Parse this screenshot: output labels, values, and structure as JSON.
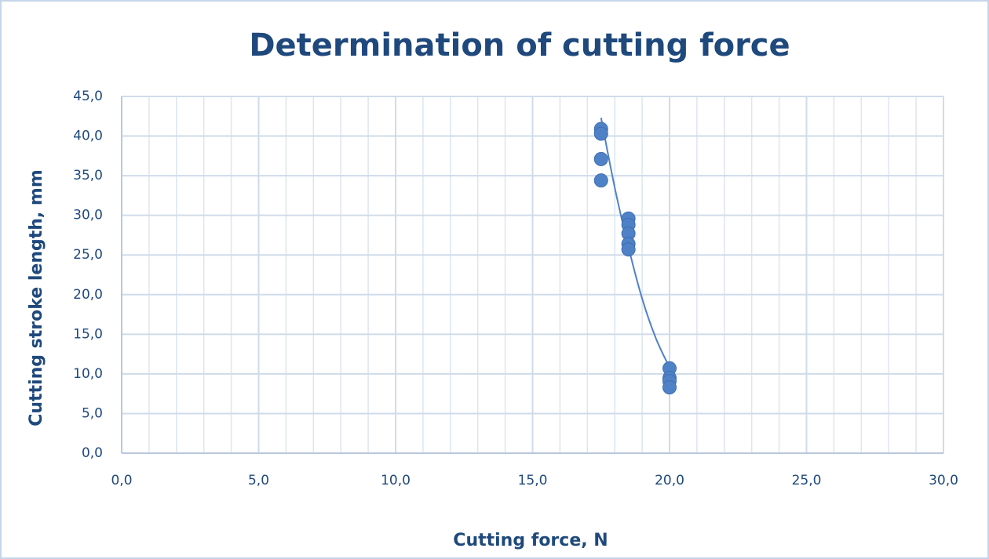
{
  "chart_data": {
    "type": "scatter",
    "title": "Determination of cutting force",
    "x_label": "Cutting force, N",
    "y_label": "Cutting stroke length, mm",
    "series": [
      {
        "color": "#4f81c7",
        "x": [
          17.5,
          17.5,
          17.5,
          17.5,
          18.5,
          18.5,
          18.5,
          18.5,
          18.5,
          20,
          20,
          20,
          20
        ],
        "values": [
          40.9,
          40.3,
          37.1,
          34.4,
          29.6,
          28.8,
          27.7,
          26.4,
          25.7,
          10.7,
          9.5,
          9.1,
          8.3
        ]
      }
    ],
    "trendline": {
      "color": "#4f81c7",
      "x": [
        17.5,
        18,
        18.5,
        19,
        19.5,
        20
      ],
      "values": [
        42.3,
        33.5,
        26,
        19.5,
        14.5,
        10.8
      ]
    },
    "xlim": [
      0,
      30
    ],
    "ylim": [
      0,
      45
    ],
    "xticks": [
      {
        "value": 0,
        "label": "0,0"
      },
      {
        "value": 5,
        "label": "5,0"
      },
      {
        "value": 10,
        "label": "10,0"
      },
      {
        "value": 15,
        "label": "15,0"
      },
      {
        "value": 20,
        "label": "20,0"
      },
      {
        "value": 25,
        "label": "25,0"
      },
      {
        "value": 30,
        "label": "30,0"
      }
    ],
    "yticks": [
      {
        "value": 0,
        "label": "0,0"
      },
      {
        "value": 5,
        "label": "5,0"
      },
      {
        "value": 10,
        "label": "10,0"
      },
      {
        "value": 15,
        "label": "15,0"
      },
      {
        "value": 20,
        "label": "20,0"
      },
      {
        "value": 25,
        "label": "25,0"
      },
      {
        "value": 30,
        "label": "30,0"
      },
      {
        "value": 35,
        "label": "35,0"
      },
      {
        "value": 40,
        "label": "40,0"
      },
      {
        "value": 45,
        "label": "45,0"
      }
    ],
    "grid": true
  }
}
